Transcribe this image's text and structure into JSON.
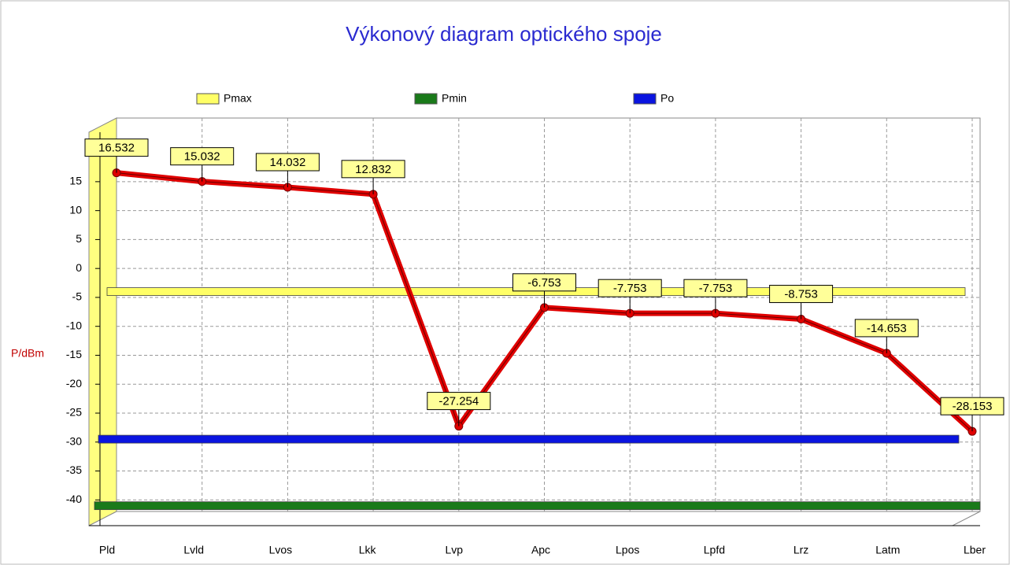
{
  "chart_data": {
    "type": "line",
    "title": "Výkonový diagram optického spoje",
    "y_label": "P/dBm",
    "categories": [
      "Pld",
      "Lvld",
      "Lvos",
      "Lkk",
      "Lvp",
      "Apc",
      "Lpos",
      "Lpfd",
      "Lrz",
      "Latm",
      "Lber"
    ],
    "values": [
      16.532,
      15.032,
      14.032,
      12.832,
      -27.254,
      -6.753,
      -7.753,
      -7.753,
      -8.753,
      -14.653,
      -28.153
    ],
    "color": "#e00000",
    "reference_lines": [
      {
        "name": "Pmax",
        "color": "#ffff66",
        "value": -4
      },
      {
        "name": "Pmin",
        "color": "#1a7a1a",
        "value": -41
      },
      {
        "name": "Po",
        "color": "#0a14e0",
        "value": -29.5
      }
    ],
    "ylim": [
      -42,
      26
    ],
    "yticks": [
      -40,
      -35,
      -30,
      -25,
      -20,
      -15,
      -10,
      -5,
      0,
      5,
      10,
      15
    ],
    "grid": true,
    "legend": "top"
  }
}
